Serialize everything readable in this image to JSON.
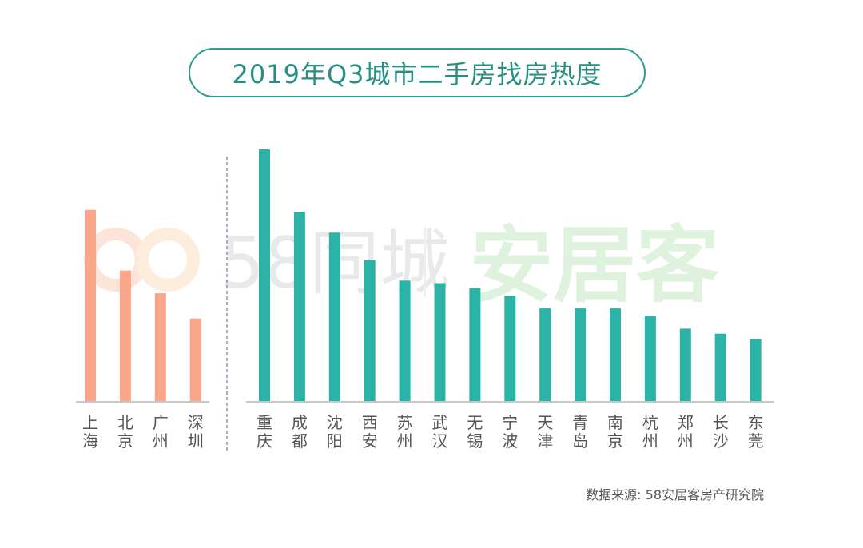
{
  "chart_data": {
    "type": "bar",
    "title": "2019年Q3城市二手房找房热度",
    "groups": [
      {
        "name": "first-tier",
        "color": "#f9a68a",
        "categories": [
          "上海",
          "北京",
          "广州",
          "深圳"
        ],
        "values": [
          76,
          52,
          43,
          33
        ]
      },
      {
        "name": "new-first-tier",
        "color": "#2ab3a6",
        "categories": [
          "重庆",
          "成都",
          "沈阳",
          "西安",
          "苏州",
          "武汉",
          "无锡",
          "宁波",
          "天津",
          "青岛",
          "南京",
          "杭州",
          "郑州",
          "长沙",
          "东莞"
        ],
        "values": [
          100,
          75,
          67,
          56,
          48,
          47,
          45,
          42,
          37,
          37,
          37,
          34,
          29,
          27,
          25
        ]
      }
    ],
    "ylim": [
      0,
      100
    ],
    "xlabel": "",
    "ylabel": "",
    "grid": false,
    "legend": "none"
  },
  "watermark": {
    "brand_a": "58同城",
    "brand_b": "安居客"
  },
  "source": "数据来源: 58安居客房产研究院",
  "colors": {
    "accent": "#2a9d8f",
    "axis": "#c8c8c8",
    "label": "#555555"
  }
}
